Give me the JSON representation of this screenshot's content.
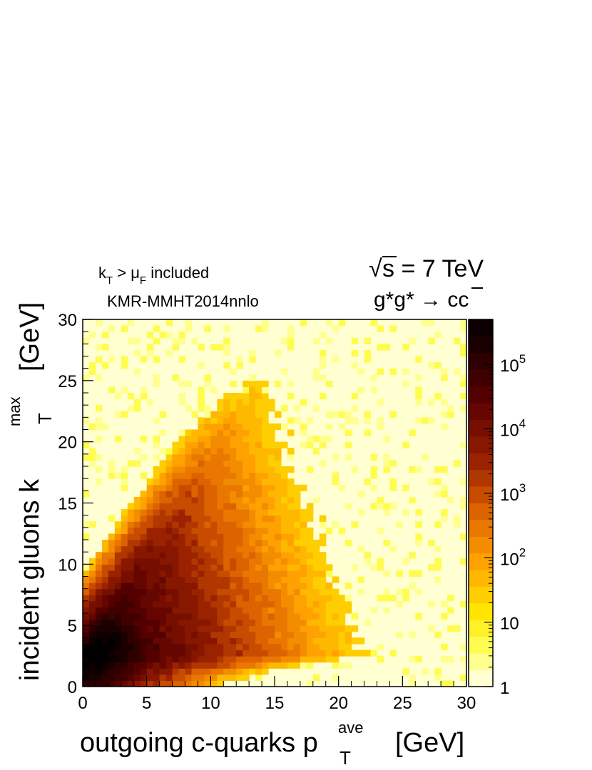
{
  "chart_data": {
    "type": "heatmap",
    "title": "",
    "annotations": {
      "cut_prefix": "k",
      "cut_prefix_sub": "T",
      "cut_mid": " > μ",
      "cut_mid_sub": "F",
      "cut_suffix": " included",
      "pdf": "KMR-MMHT2014nnlo",
      "energy_sqrt": "√",
      "energy": "s = 7 TeV",
      "process": "g*g* → c",
      "process_bar": "c"
    },
    "xlabel": {
      "main": "outgoing c-quarks p",
      "sup": "ave",
      "sub": "T",
      "unit": "[GeV]"
    },
    "ylabel": {
      "main": "incident gluons k",
      "sup": "max",
      "sub": "T",
      "unit": "[GeV]"
    },
    "xlim": [
      0,
      30
    ],
    "ylim": [
      0,
      30
    ],
    "xticks": [
      "0",
      "5",
      "10",
      "15",
      "20",
      "25",
      "30"
    ],
    "yticks": [
      "0",
      "5",
      "10",
      "15",
      "20",
      "25",
      "30"
    ],
    "colorbar": {
      "scale": "log",
      "range": [
        1,
        500000
      ],
      "tick_labels": [
        {
          "value": 1,
          "base": "1",
          "exp": ""
        },
        {
          "value": 10,
          "base": "10",
          "exp": ""
        },
        {
          "value": 100,
          "base": "10",
          "exp": "2"
        },
        {
          "value": 1000,
          "base": "10",
          "exp": "3"
        },
        {
          "value": 10000,
          "base": "10",
          "exp": "4"
        },
        {
          "value": 100000,
          "base": "10",
          "exp": "5"
        }
      ]
    },
    "colors": {
      "low": "#ffffcc",
      "yellow": "#ffff33",
      "orange": "#ff9900",
      "red": "#cc4400",
      "dark_red": "#880000",
      "black": "#000000"
    },
    "grid": false
  }
}
